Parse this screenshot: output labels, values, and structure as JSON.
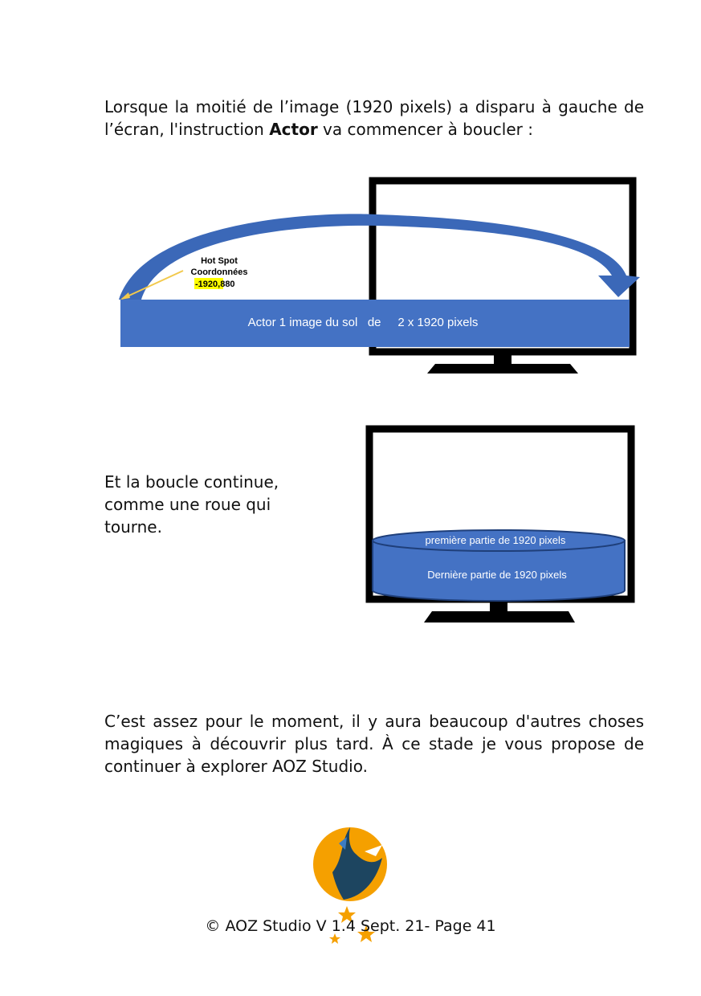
{
  "paragraph1": {
    "part1": "Lorsque la moitié de l’image (1920 pixels) a disparu à gauche de l’écran, l'instruction ",
    "bold": "Actor",
    "part2": " va commencer à boucler :"
  },
  "figure1": {
    "hotspot_line1": "Hot Spot",
    "hotspot_line2": "Coordonnées",
    "hotspot_x": "-1920",
    "hotspot_y": ",880",
    "band_label": "Actor 1 image du sol   de     2 x 1920 pixels",
    "colors": {
      "band": "#4472c4",
      "arrow": "#3b68b8",
      "highlight": "#ffff00",
      "frame": "#000000"
    }
  },
  "paragraph2": "Et la boucle continue, comme une roue qui tourne.",
  "figure2": {
    "top_label": "première partie de 1920 pixels",
    "bottom_label": "Dernière partie de 1920 pixels"
  },
  "paragraph3": "C’est assez pour le moment, il y aura beaucoup d'autres choses magiques à découvrir plus tard. À ce stade je vous propose de continuer à explorer AOZ Studio.",
  "footer": "© AOZ Studio V 1.4  Sept. 21- Page 41",
  "logo": {
    "icon": "aoz-logo-icon",
    "colors": {
      "orange": "#f5a000",
      "navy": "#1d4560"
    }
  }
}
